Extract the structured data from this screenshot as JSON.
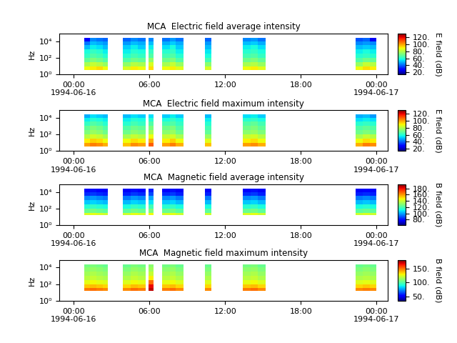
{
  "chart_data": [
    {
      "type": "heatmap",
      "title": "MCA  Electric field average intensity",
      "y_label": "Hz",
      "log": "y",
      "x_edges": [
        0.85,
        1.3,
        1.8,
        2.3,
        2.7,
        3.9,
        4.5,
        5.1,
        5.7,
        5.95,
        6.35,
        7.0,
        7.6,
        8.1,
        8.7,
        10.4,
        10.9,
        13.4,
        14.0,
        14.6,
        15.2,
        22.35,
        22.9,
        23.45,
        24.0
      ],
      "y_edges": [
        3.2,
        10,
        32,
        100,
        316,
        1000,
        3162,
        10000,
        25000
      ],
      "cells": [
        [
          88,
          90,
          92,
          88,
          null,
          85,
          90,
          88,
          null,
          92,
          null,
          88,
          90,
          86,
          null,
          85,
          null,
          88,
          90,
          86,
          null,
          88,
          92,
          90
        ],
        [
          78,
          82,
          80,
          76,
          null,
          75,
          80,
          78,
          null,
          85,
          null,
          78,
          82,
          76,
          null,
          74,
          null,
          78,
          80,
          76,
          null,
          76,
          82,
          80
        ],
        [
          68,
          72,
          70,
          66,
          null,
          66,
          70,
          68,
          null,
          75,
          null,
          70,
          72,
          66,
          null,
          64,
          null,
          70,
          72,
          68,
          null,
          66,
          70,
          68
        ],
        [
          62,
          66,
          64,
          60,
          null,
          60,
          64,
          62,
          null,
          66,
          null,
          64,
          66,
          60,
          null,
          58,
          null,
          64,
          66,
          62,
          null,
          60,
          62,
          60
        ],
        [
          58,
          62,
          60,
          56,
          null,
          56,
          60,
          58,
          null,
          62,
          null,
          60,
          62,
          56,
          null,
          55,
          null,
          60,
          62,
          58,
          null,
          56,
          58,
          56
        ],
        [
          50,
          56,
          54,
          50,
          null,
          52,
          56,
          52,
          null,
          56,
          null,
          54,
          58,
          52,
          null,
          50,
          null,
          56,
          58,
          54,
          null,
          50,
          52,
          50
        ],
        [
          42,
          50,
          48,
          46,
          null,
          46,
          50,
          48,
          null,
          50,
          null,
          48,
          52,
          48,
          null,
          46,
          null,
          50,
          52,
          48,
          null,
          44,
          46,
          44
        ],
        [
          28,
          44,
          42,
          40,
          null,
          40,
          44,
          42,
          null,
          44,
          null,
          42,
          46,
          42,
          null,
          40,
          null,
          44,
          46,
          42,
          null,
          38,
          40,
          26
        ]
      ],
      "xlim": [
        -1.13,
        24.9
      ],
      "xticks": [
        {
          "value": 0,
          "label": "00:00\n1994-06-16"
        },
        {
          "value": 6,
          "label": "06:00"
        },
        {
          "value": 12,
          "label": "12:00"
        },
        {
          "value": 18,
          "label": "18:00"
        },
        {
          "value": 24,
          "label": "00:00\n1994-06-17"
        }
      ],
      "ylim": [
        1,
        80000
      ],
      "yticks": [
        {
          "value": 1,
          "label": "10⁰"
        },
        {
          "value": 100,
          "label": "10²"
        },
        {
          "value": 10000,
          "label": "10⁴"
        }
      ],
      "colorbar_label": "E field (dB)",
      "colorbar_range": [
        14,
        130
      ],
      "colorbar_ticks": [
        {
          "value": 20,
          "label": "20."
        },
        {
          "value": 40,
          "label": "40."
        },
        {
          "value": 60,
          "label": "60."
        },
        {
          "value": 80,
          "label": "80."
        },
        {
          "value": 100,
          "label": "100."
        },
        {
          "value": 120,
          "label": "120."
        }
      ]
    },
    {
      "type": "heatmap",
      "title": "MCA  Electric field maximum intensity",
      "y_label": "Hz",
      "log": "y",
      "x_edges": [
        0.85,
        1.3,
        1.8,
        2.3,
        2.7,
        3.9,
        4.5,
        5.1,
        5.7,
        5.95,
        6.35,
        7.0,
        7.6,
        8.1,
        8.7,
        10.4,
        10.9,
        13.4,
        14.0,
        14.6,
        15.2,
        22.35,
        22.9,
        23.45,
        24.0
      ],
      "y_edges": [
        3.2,
        10,
        32,
        100,
        316,
        1000,
        3162,
        10000,
        25000
      ],
      "cells": [
        [
          100,
          104,
          102,
          98,
          null,
          96,
          102,
          100,
          null,
          108,
          null,
          100,
          104,
          98,
          null,
          96,
          null,
          100,
          102,
          98,
          null,
          98,
          104,
          102
        ],
        [
          90,
          94,
          92,
          88,
          null,
          88,
          92,
          90,
          null,
          98,
          null,
          90,
          94,
          88,
          null,
          86,
          null,
          90,
          92,
          88,
          null,
          88,
          92,
          90
        ],
        [
          80,
          84,
          82,
          78,
          null,
          78,
          82,
          80,
          null,
          88,
          null,
          82,
          84,
          78,
          null,
          76,
          null,
          82,
          84,
          80,
          null,
          78,
          82,
          80
        ],
        [
          72,
          76,
          74,
          70,
          null,
          70,
          74,
          72,
          null,
          78,
          null,
          74,
          76,
          70,
          null,
          68,
          null,
          74,
          76,
          72,
          null,
          70,
          72,
          70
        ],
        [
          68,
          72,
          70,
          66,
          null,
          66,
          70,
          68,
          null,
          72,
          null,
          70,
          72,
          66,
          null,
          64,
          null,
          70,
          72,
          68,
          null,
          66,
          68,
          66
        ],
        [
          62,
          66,
          64,
          60,
          null,
          60,
          64,
          62,
          null,
          66,
          null,
          64,
          66,
          62,
          null,
          60,
          null,
          66,
          68,
          64,
          null,
          60,
          62,
          60
        ],
        [
          56,
          60,
          58,
          56,
          null,
          56,
          60,
          58,
          null,
          60,
          null,
          58,
          62,
          58,
          null,
          56,
          null,
          60,
          62,
          58,
          null,
          54,
          56,
          54
        ],
        [
          48,
          54,
          52,
          50,
          null,
          50,
          54,
          52,
          null,
          54,
          null,
          52,
          56,
          52,
          null,
          50,
          null,
          54,
          56,
          52,
          null,
          48,
          50,
          46
        ]
      ],
      "xlim": [
        -1.13,
        24.9
      ],
      "xticks": [
        {
          "value": 0,
          "label": "00:00\n1994-06-16"
        },
        {
          "value": 6,
          "label": "06:00"
        },
        {
          "value": 12,
          "label": "12:00"
        },
        {
          "value": 18,
          "label": "18:00"
        },
        {
          "value": 24,
          "label": "00:00\n1994-06-17"
        }
      ],
      "ylim": [
        1,
        80000
      ],
      "yticks": [
        {
          "value": 1,
          "label": "10⁰"
        },
        {
          "value": 100,
          "label": "10²"
        },
        {
          "value": 10000,
          "label": "10⁴"
        }
      ],
      "colorbar_label": "E field (dB)",
      "colorbar_range": [
        14,
        130
      ],
      "colorbar_ticks": [
        {
          "value": 20,
          "label": "20."
        },
        {
          "value": 40,
          "label": "40."
        },
        {
          "value": 60,
          "label": "60."
        },
        {
          "value": 80,
          "label": "80."
        },
        {
          "value": 100,
          "label": "100."
        },
        {
          "value": 120,
          "label": "120."
        }
      ]
    },
    {
      "type": "heatmap",
      "title": "MCA  Magnetic field average intensity",
      "y_label": "Hz",
      "log": "y",
      "x_edges": [
        0.85,
        1.3,
        1.8,
        2.3,
        2.7,
        3.9,
        4.5,
        5.1,
        5.7,
        5.95,
        6.35,
        7.0,
        7.6,
        8.1,
        8.7,
        10.4,
        10.9,
        13.4,
        14.0,
        14.6,
        15.2,
        22.35,
        22.9,
        23.45,
        24.0
      ],
      "y_edges": [
        16,
        32,
        100,
        316,
        1000,
        3162,
        10000,
        25000
      ],
      "cells": [
        [
          142,
          144,
          142,
          140,
          null,
          140,
          144,
          142,
          null,
          146,
          null,
          142,
          144,
          140,
          null,
          140,
          null,
          142,
          144,
          140,
          null,
          140,
          142,
          140
        ],
        [
          124,
          126,
          124,
          122,
          null,
          122,
          126,
          124,
          null,
          128,
          null,
          124,
          126,
          122,
          null,
          122,
          null,
          124,
          126,
          122,
          null,
          122,
          124,
          122
        ],
        [
          114,
          116,
          114,
          112,
          null,
          112,
          116,
          114,
          null,
          118,
          null,
          114,
          116,
          112,
          null,
          112,
          null,
          114,
          116,
          112,
          null,
          112,
          114,
          112
        ],
        [
          104,
          106,
          104,
          102,
          null,
          102,
          106,
          104,
          null,
          108,
          null,
          104,
          106,
          102,
          null,
          102,
          null,
          104,
          106,
          102,
          null,
          102,
          104,
          102
        ],
        [
          96,
          98,
          96,
          94,
          null,
          94,
          98,
          96,
          null,
          100,
          null,
          96,
          98,
          94,
          null,
          94,
          null,
          96,
          98,
          94,
          null,
          94,
          96,
          94
        ],
        [
          84,
          86,
          84,
          82,
          null,
          82,
          86,
          84,
          null,
          88,
          null,
          84,
          86,
          82,
          null,
          82,
          null,
          84,
          86,
          82,
          null,
          82,
          84,
          82
        ],
        [
          78,
          80,
          78,
          76,
          null,
          76,
          80,
          78,
          null,
          82,
          null,
          78,
          80,
          76,
          null,
          76,
          null,
          78,
          80,
          76,
          null,
          76,
          78,
          76
        ]
      ],
      "xlim": [
        -1.13,
        24.9
      ],
      "xticks": [
        {
          "value": 0,
          "label": "00:00\n1994-06-16"
        },
        {
          "value": 6,
          "label": "06:00"
        },
        {
          "value": 12,
          "label": "12:00"
        },
        {
          "value": 18,
          "label": "18:00"
        },
        {
          "value": 24,
          "label": "00:00\n1994-06-17"
        }
      ],
      "ylim": [
        1,
        80000
      ],
      "yticks": [
        {
          "value": 1,
          "label": "10⁰"
        },
        {
          "value": 100,
          "label": "10²"
        },
        {
          "value": 10000,
          "label": "10⁴"
        }
      ],
      "colorbar_label": "B field (dB)",
      "colorbar_range": [
        62,
        193
      ],
      "colorbar_ticks": [
        {
          "value": 80,
          "label": "80."
        },
        {
          "value": 100,
          "label": "100."
        },
        {
          "value": 120,
          "label": "120."
        },
        {
          "value": 140,
          "label": "140."
        },
        {
          "value": 160,
          "label": "160."
        },
        {
          "value": 180,
          "label": "180."
        }
      ]
    },
    {
      "type": "heatmap",
      "title": "MCA  Magnetic field maximum intensity",
      "y_label": "Hz",
      "log": "y",
      "x_edges": [
        0.85,
        1.3,
        1.8,
        2.3,
        2.7,
        3.9,
        4.5,
        5.1,
        5.7,
        5.95,
        6.35,
        7.0,
        7.6,
        8.1,
        8.7,
        10.4,
        10.9,
        13.4,
        14.0,
        14.6,
        15.2,
        22.35,
        22.9,
        23.45,
        24.0
      ],
      "y_edges": [
        16,
        32,
        100,
        316,
        1000,
        3162,
        10000,
        25000
      ],
      "cells": [
        [
          148,
          150,
          148,
          146,
          null,
          146,
          150,
          148,
          null,
          172,
          null,
          148,
          150,
          146,
          null,
          146,
          null,
          148,
          150,
          146,
          null,
          146,
          148,
          146
        ],
        [
          136,
          138,
          136,
          134,
          null,
          134,
          138,
          136,
          null,
          166,
          null,
          136,
          138,
          134,
          null,
          134,
          null,
          136,
          138,
          134,
          null,
          134,
          136,
          134
        ],
        [
          126,
          128,
          126,
          124,
          null,
          124,
          128,
          126,
          null,
          150,
          null,
          126,
          128,
          124,
          null,
          124,
          null,
          126,
          128,
          124,
          null,
          124,
          126,
          124
        ],
        [
          118,
          120,
          118,
          116,
          null,
          116,
          120,
          118,
          null,
          130,
          null,
          118,
          120,
          116,
          null,
          116,
          null,
          118,
          120,
          116,
          null,
          116,
          118,
          116
        ],
        [
          114,
          116,
          114,
          112,
          null,
          112,
          116,
          114,
          null,
          120,
          null,
          114,
          116,
          112,
          null,
          112,
          null,
          114,
          116,
          112,
          null,
          112,
          114,
          112
        ],
        [
          110,
          112,
          110,
          108,
          null,
          108,
          112,
          110,
          null,
          114,
          null,
          110,
          112,
          108,
          null,
          108,
          null,
          110,
          112,
          108,
          null,
          108,
          110,
          108
        ],
        [
          106,
          108,
          106,
          104,
          null,
          104,
          108,
          106,
          null,
          110,
          null,
          106,
          108,
          104,
          null,
          104,
          null,
          106,
          108,
          104,
          null,
          104,
          106,
          104
        ]
      ],
      "xlim": [
        -1.13,
        24.9
      ],
      "xticks": [
        {
          "value": 0,
          "label": "00:00\n1994-06-16"
        },
        {
          "value": 6,
          "label": "06:00"
        },
        {
          "value": 12,
          "label": "12:00"
        },
        {
          "value": 18,
          "label": "18:00"
        },
        {
          "value": 24,
          "label": "00:00\n1994-06-17"
        }
      ],
      "ylim": [
        1,
        80000
      ],
      "yticks": [
        {
          "value": 1,
          "label": "10⁰"
        },
        {
          "value": 100,
          "label": "10²"
        },
        {
          "value": 10000,
          "label": "10⁴"
        }
      ],
      "colorbar_label": "B field (dB)",
      "colorbar_range": [
        35,
        180
      ],
      "colorbar_ticks": [
        {
          "value": 50,
          "label": "50."
        },
        {
          "value": 100,
          "label": "100."
        },
        {
          "value": 150,
          "label": "150."
        }
      ]
    }
  ]
}
